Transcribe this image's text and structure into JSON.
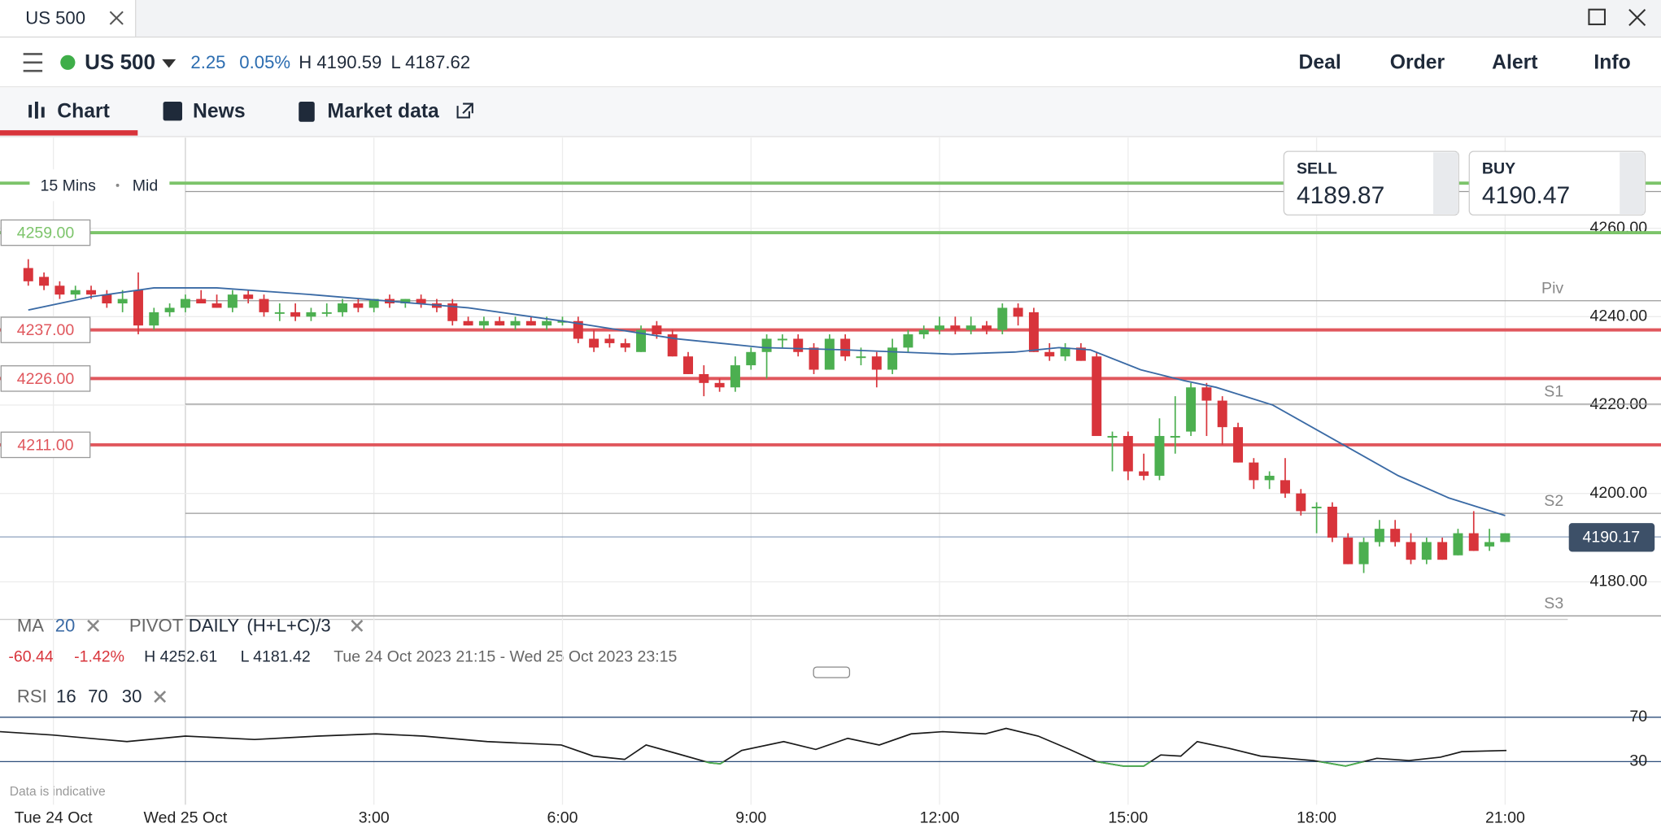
{
  "ui": {
    "tab": "US 500",
    "instrument": "US 500",
    "change": "2.25",
    "change_pct": "0.05%",
    "high": "H 4190.59",
    "low": "L 4187.62",
    "actions": [
      "Deal",
      "Order",
      "Alert",
      "Info"
    ],
    "tabs": [
      "Chart",
      "News",
      "Market data"
    ],
    "timeframe": "15 Mins",
    "price_type": "Mid",
    "sell": {
      "label": "SELL",
      "price": "4189.87"
    },
    "buy": {
      "label": "BUY",
      "price": "4190.47"
    },
    "indicators": {
      "ma": "MA",
      "ma_period": "20",
      "pivot": "PIVOT",
      "pivot_period": "DAILY",
      "pivot_formula": "(H+L+C)/3"
    },
    "stats": {
      "change": "-60.44",
      "change_pct": "-1.42%",
      "high": "H 4252.61",
      "low": "L 4181.42",
      "range": "Tue 24 Oct 2023 21:15 - Wed 25 Oct 2023 23:15"
    },
    "rsi": {
      "name": "RSI",
      "period": "16",
      "upper": "70",
      "lower": "30"
    },
    "footnote": "Data is indicative"
  },
  "chart_data": [
    {
      "type": "candlestick",
      "up_color": "#4caf50",
      "down_color": "#d8343b",
      "xlim": [
        -2.95,
        23.48
      ],
      "xticks": [
        {
          "value": -2.1,
          "label": "Tue 24 Oct"
        },
        {
          "value": 0,
          "label": "Wed 25 Oct"
        },
        {
          "value": 3,
          "label": "3:00"
        },
        {
          "value": 6,
          "label": "6:00"
        },
        {
          "value": 9,
          "label": "9:00"
        },
        {
          "value": 12,
          "label": "12:00"
        },
        {
          "value": 15,
          "label": "15:00"
        },
        {
          "value": 18,
          "label": "18:00"
        },
        {
          "value": 21,
          "label": "21:00"
        }
      ],
      "ylim": [
        4171.5,
        4280.5
      ],
      "yticks": [
        {
          "value": 4180,
          "label": "4180.00"
        },
        {
          "value": 4200,
          "label": "4200.00"
        },
        {
          "value": 4220,
          "label": "4220.00"
        },
        {
          "value": 4240,
          "label": "4240.00"
        },
        {
          "value": 4260,
          "label": "4260.00"
        }
      ],
      "grid": true,
      "x": [
        -2.5,
        -2.25,
        -2,
        -1.75,
        -1.5,
        -1.25,
        -1,
        -0.75,
        -0.5,
        -0.25,
        0,
        0.25,
        0.5,
        0.75,
        1,
        1.25,
        1.5,
        1.75,
        2,
        2.25,
        2.5,
        2.75,
        3,
        3.25,
        3.5,
        3.75,
        4,
        4.25,
        4.5,
        4.75,
        5,
        5.25,
        5.5,
        5.75,
        6,
        6.25,
        6.5,
        6.75,
        7,
        7.25,
        7.5,
        7.75,
        8,
        8.25,
        8.5,
        8.75,
        9,
        9.25,
        9.5,
        9.75,
        10,
        10.25,
        10.5,
        10.75,
        11,
        11.25,
        11.5,
        11.75,
        12,
        12.25,
        12.5,
        12.75,
        13,
        13.25,
        13.5,
        13.75,
        14,
        14.25,
        14.5,
        14.75,
        15,
        15.25,
        15.5,
        15.75,
        16,
        16.25,
        16.5,
        16.75,
        17,
        17.25,
        17.5,
        17.75,
        18,
        18.25,
        18.5,
        18.75,
        19,
        19.25,
        19.5,
        19.75,
        20,
        20.25,
        20.5,
        20.75,
        21
      ],
      "candles": [
        [
          4251,
          4253,
          4247,
          4248
        ],
        [
          4249,
          4250,
          4246,
          4247
        ],
        [
          4247,
          4248,
          4244,
          4245
        ],
        [
          4245,
          4247,
          4244,
          4246
        ],
        [
          4246,
          4247,
          4244,
          4245
        ],
        [
          4245,
          4246,
          4242,
          4243
        ],
        [
          4243,
          4246,
          4241,
          4244
        ],
        [
          4246,
          4250,
          4236,
          4238
        ],
        [
          4238,
          4242,
          4237,
          4241
        ],
        [
          4241,
          4243,
          4240,
          4242
        ],
        [
          4242,
          4245,
          4241,
          4244
        ],
        [
          4244,
          4246,
          4243,
          4243
        ],
        [
          4243,
          4245,
          4242,
          4242
        ],
        [
          4242,
          4246,
          4241,
          4245
        ],
        [
          4245,
          4246,
          4243,
          4244
        ],
        [
          4244,
          4245,
          4240,
          4241
        ],
        [
          4241,
          4243,
          4239,
          4241
        ],
        [
          4241,
          4243,
          4239,
          4240
        ],
        [
          4240,
          4242,
          4239,
          4241
        ],
        [
          4241,
          4243,
          4240,
          4241
        ],
        [
          4241,
          4244,
          4240,
          4243
        ],
        [
          4243,
          4244,
          4241,
          4242
        ],
        [
          4242,
          4244,
          4241,
          4244
        ],
        [
          4244,
          4245,
          4242,
          4243
        ],
        [
          4243,
          4244,
          4242,
          4244
        ],
        [
          4244,
          4245,
          4242,
          4243
        ],
        [
          4243,
          4244,
          4241,
          4242
        ],
        [
          4243,
          4244,
          4238,
          4239
        ],
        [
          4239,
          4240,
          4238,
          4238
        ],
        [
          4238,
          4240,
          4237,
          4239
        ],
        [
          4239,
          4240,
          4238,
          4238
        ],
        [
          4238,
          4240,
          4237,
          4239
        ],
        [
          4239,
          4240,
          4238,
          4238
        ],
        [
          4238,
          4240,
          4237,
          4239
        ],
        [
          4239,
          4240,
          4238,
          4239
        ],
        [
          4239,
          4240,
          4234,
          4235
        ],
        [
          4235,
          4237,
          4232,
          4233
        ],
        [
          4235,
          4236,
          4233,
          4234
        ],
        [
          4234,
          4235,
          4232,
          4233
        ],
        [
          4232,
          4238,
          4232,
          4237
        ],
        [
          4238,
          4239,
          4235,
          4236
        ],
        [
          4236,
          4237,
          4231,
          4231
        ],
        [
          4231,
          4232,
          4227,
          4227
        ],
        [
          4227,
          4229,
          4222,
          4225
        ],
        [
          4225,
          4226,
          4223,
          4224
        ],
        [
          4224,
          4231,
          4223,
          4229
        ],
        [
          4229,
          4233,
          4228,
          4232
        ],
        [
          4232,
          4236,
          4226,
          4235
        ],
        [
          4235,
          4236,
          4233,
          4235
        ],
        [
          4235,
          4236,
          4231,
          4232
        ],
        [
          4233,
          4234,
          4227,
          4228
        ],
        [
          4228,
          4236,
          4228,
          4235
        ],
        [
          4235,
          4236,
          4230,
          4231
        ],
        [
          4231,
          4233,
          4229,
          4231
        ],
        [
          4231,
          4232,
          4224,
          4228
        ],
        [
          4228,
          4235,
          4227,
          4233
        ],
        [
          4233,
          4237,
          4232,
          4236
        ],
        [
          4236,
          4238,
          4235,
          4237
        ],
        [
          4237,
          4240,
          4236,
          4238
        ],
        [
          4238,
          4240,
          4236,
          4237
        ],
        [
          4237,
          4240,
          4236,
          4238
        ],
        [
          4238,
          4239,
          4236,
          4237
        ],
        [
          4237,
          4243,
          4236,
          4242
        ],
        [
          4242,
          4243,
          4238,
          4240
        ],
        [
          4241,
          4242,
          4232,
          4232
        ],
        [
          4232,
          4234,
          4230,
          4231
        ],
        [
          4231,
          4234,
          4230,
          4233
        ],
        [
          4233,
          4234,
          4230,
          4230
        ],
        [
          4231,
          4232,
          4213,
          4213
        ],
        [
          4213,
          4214,
          4205,
          4213
        ],
        [
          4213,
          4214,
          4203,
          4205
        ],
        [
          4205,
          4209,
          4203,
          4204
        ],
        [
          4204,
          4217,
          4203,
          4213
        ],
        [
          4213,
          4222,
          4209,
          4213
        ],
        [
          4214,
          4225,
          4213,
          4224
        ],
        [
          4224,
          4225,
          4213,
          4221
        ],
        [
          4221,
          4222,
          4211,
          4215
        ],
        [
          4215,
          4216,
          4207,
          4207
        ],
        [
          4207,
          4208,
          4201,
          4203
        ],
        [
          4203,
          4205,
          4201,
          4204
        ],
        [
          4203,
          4208,
          4199,
          4200
        ],
        [
          4200,
          4201,
          4195,
          4196
        ],
        [
          4197,
          4198,
          4191,
          4197
        ],
        [
          4197,
          4198,
          4189,
          4190
        ],
        [
          4190,
          4191,
          4184,
          4184
        ],
        [
          4184,
          4190,
          4182,
          4189
        ],
        [
          4189,
          4194,
          4188,
          4192
        ],
        [
          4192,
          4194,
          4188,
          4189
        ],
        [
          4189,
          4191,
          4184,
          4185
        ],
        [
          4185,
          4190,
          4184,
          4189
        ],
        [
          4189,
          4190,
          4185,
          4185
        ],
        [
          4186,
          4192,
          4186,
          4191
        ],
        [
          4191,
          4196,
          4187,
          4187
        ],
        [
          4188,
          4192,
          4187,
          4189
        ],
        [
          4189,
          4191,
          4189,
          4191
        ]
      ],
      "ma": {
        "color": "#3a6aa5",
        "x": [
          -2.5,
          -1.5,
          -0.5,
          0.5,
          2,
          4.5,
          6,
          7.8,
          9.2,
          10.5,
          12.2,
          13.2,
          13.9,
          14.4,
          15.2,
          15.9,
          16.4,
          17.3,
          18.3,
          19.3,
          20.1,
          21
        ],
        "values": [
          4241.5,
          4244.5,
          4246.5,
          4246.5,
          4245,
          4242,
          4239,
          4235,
          4233,
          4232.5,
          4231.5,
          4232,
          4233,
          4232.5,
          4228,
          4225.5,
          4224,
          4220,
          4212,
          4204,
          4199,
          4195
        ]
      },
      "levels": [
        {
          "value": 4270.2,
          "color": "#7cc46a"
        },
        {
          "value": 4259,
          "label": "4259.00",
          "color": "#7cc46a"
        },
        {
          "value": 4237,
          "label": "4237.00",
          "color": "#e0575d"
        },
        {
          "value": 4226,
          "label": "4226.00",
          "color": "#e0575d"
        },
        {
          "value": 4211,
          "label": "4211.00",
          "color": "#e0575d"
        }
      ],
      "pivots": [
        {
          "value": 4268.3
        },
        {
          "value": 4243.6,
          "label": "Piv"
        },
        {
          "value": 4220.2,
          "label": "S1"
        },
        {
          "value": 4195.5,
          "label": "S2"
        },
        {
          "value": 4172.3,
          "label": "S3"
        }
      ],
      "last_price": {
        "value": 4190.17,
        "label": "4190.17"
      }
    },
    {
      "type": "line",
      "color": "#1a1a1a",
      "oversold_color": "#4caf50",
      "level_color": "#2c4d7a",
      "ylim": [
        -1.2,
        86.6
      ],
      "yticks": [
        70,
        30
      ],
      "x": [
        -2.95,
        -2.11,
        -0.93,
        0,
        1.1,
        2.11,
        3.03,
        3.79,
        4.8,
        5.98,
        6.49,
        6.99,
        7.33,
        7.84,
        8.34,
        8.51,
        8.85,
        9.52,
        10.03,
        10.54,
        11.04,
        11.55,
        12.05,
        12.73,
        13.06,
        13.57,
        14.07,
        14.5,
        14.92,
        15.25,
        15.52,
        15.84,
        16.1,
        16.6,
        17.11,
        17.95,
        18.46,
        18.96,
        19.47,
        19.97,
        20.31,
        21.02
      ],
      "values": [
        57,
        54,
        48,
        53,
        50,
        53,
        55,
        53,
        48,
        45,
        35,
        32,
        45,
        37,
        29,
        28,
        40,
        48,
        41,
        51,
        45,
        55,
        57,
        55,
        60,
        53,
        41,
        30,
        26,
        26,
        36,
        35,
        48,
        42,
        35,
        31,
        26,
        33,
        31,
        34,
        39,
        40
      ]
    }
  ]
}
